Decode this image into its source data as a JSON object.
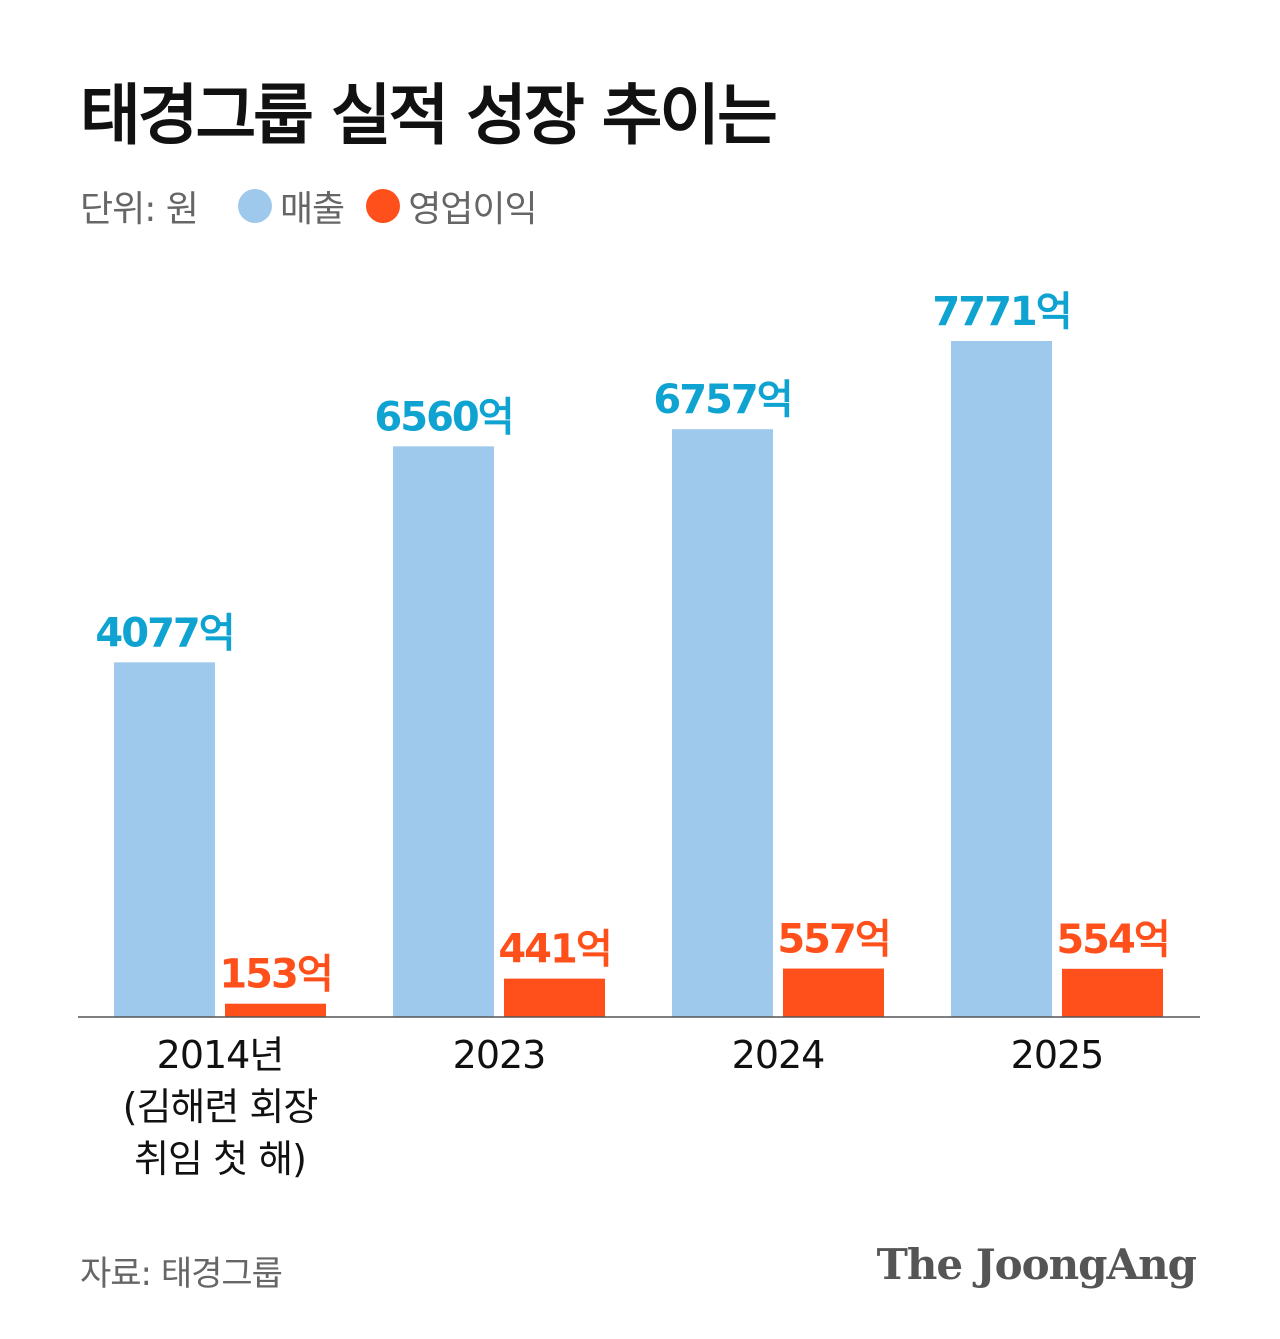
{
  "title": "태경그룹 실적 성장 추이는",
  "legend": {
    "unit": "단위: 원",
    "revenue_label": "매출",
    "profit_label": "영업이익"
  },
  "colors": {
    "revenue_bar": "#9fc9ec",
    "revenue_label": "#0fa3d1",
    "profit_bar": "#ff4f1a",
    "profit_label": "#ff4f1a"
  },
  "source": "자료: 태경그룹",
  "brand": "The JoongAng",
  "chart_data": {
    "type": "bar",
    "categories": [
      "2014년\n(김해련 회장\n취임 첫 해)",
      "2023",
      "2024",
      "2025"
    ],
    "series": [
      {
        "name": "매출",
        "values": [
          4077,
          6560,
          6757,
          7771
        ],
        "labels": [
          "4077억",
          "6560억",
          "6757억",
          "7771억"
        ]
      },
      {
        "name": "영업이익",
        "values": [
          153,
          441,
          557,
          554
        ],
        "labels": [
          "153억",
          "441억",
          "557억",
          "554억"
        ]
      }
    ],
    "ylim": [
      0,
      9000
    ],
    "xlabel": "",
    "ylabel": "",
    "grid": false
  }
}
